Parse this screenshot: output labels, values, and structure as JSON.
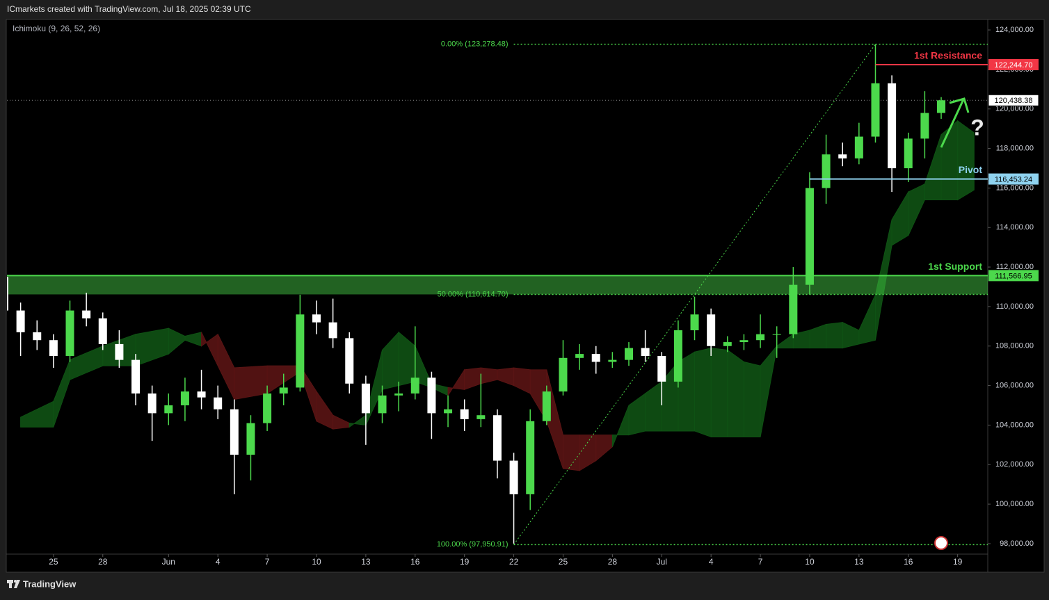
{
  "chart_data": {
    "type": "candlestick",
    "header": "ICmarkets created with TradingView.com, Jul 18, 2025 02:39 UTC",
    "indicator": "Ichimoku (9, 26, 52, 26)",
    "footer": "TradingView",
    "up_color": "#4cd94c",
    "down_color": "#ffffff",
    "x": [
      0,
      1,
      2,
      3,
      4,
      5,
      6,
      7,
      8,
      9,
      10,
      11,
      12,
      13,
      14,
      15,
      16,
      17,
      18,
      19,
      20,
      21,
      22,
      23,
      24,
      25,
      26,
      27,
      28,
      29,
      30,
      31,
      32,
      33,
      34,
      35,
      36,
      37,
      38,
      39,
      40,
      41,
      42,
      43,
      44,
      45,
      46,
      47,
      48,
      49,
      50,
      51,
      52,
      53,
      54,
      55,
      56,
      57
    ],
    "candles": [
      [
        111500,
        112000,
        109300,
        109800
      ],
      [
        109800,
        110200,
        107500,
        108700
      ],
      [
        108700,
        109300,
        107800,
        108300
      ],
      [
        108300,
        108600,
        106900,
        107500
      ],
      [
        107500,
        110300,
        107200,
        109800
      ],
      [
        109800,
        110700,
        109000,
        109400
      ],
      [
        109400,
        109700,
        107800,
        108100
      ],
      [
        108100,
        108800,
        106900,
        107300
      ],
      [
        107300,
        107600,
        105000,
        105600
      ],
      [
        105600,
        106000,
        103200,
        104600
      ],
      [
        104600,
        105600,
        104000,
        105000
      ],
      [
        105000,
        106400,
        104200,
        105700
      ],
      [
        105700,
        106800,
        104800,
        105400
      ],
      [
        105400,
        106000,
        104300,
        104800
      ],
      [
        104800,
        105300,
        100500,
        102500
      ],
      [
        102500,
        104500,
        101200,
        104100
      ],
      [
        104100,
        106000,
        103700,
        105600
      ],
      [
        105600,
        106600,
        105000,
        105900
      ],
      [
        105900,
        110600,
        105700,
        109600
      ],
      [
        109600,
        110300,
        108600,
        109200
      ],
      [
        109200,
        110400,
        107900,
        108400
      ],
      [
        108400,
        108700,
        105600,
        106100
      ],
      [
        106100,
        106500,
        103000,
        104600
      ],
      [
        104600,
        106000,
        104100,
        105500
      ],
      [
        105500,
        106200,
        104700,
        105600
      ],
      [
        105600,
        109000,
        105300,
        106400
      ],
      [
        106400,
        106700,
        103300,
        104600
      ],
      [
        104600,
        105500,
        103900,
        104800
      ],
      [
        104800,
        105300,
        103700,
        104300
      ],
      [
        104300,
        106600,
        103900,
        104500
      ],
      [
        104500,
        104800,
        101300,
        102200
      ],
      [
        102200,
        102600,
        98000,
        100500
      ],
      [
        100500,
        104800,
        99700,
        104200
      ],
      [
        104200,
        106000,
        104000,
        105700
      ],
      [
        105700,
        108300,
        105500,
        107400
      ],
      [
        107400,
        108100,
        106800,
        107600
      ],
      [
        107600,
        108000,
        106600,
        107200
      ],
      [
        107200,
        107700,
        106900,
        107300
      ],
      [
        107300,
        108200,
        107000,
        107900
      ],
      [
        107900,
        108800,
        107200,
        107500
      ],
      [
        107500,
        107700,
        105000,
        106200
      ],
      [
        106200,
        109300,
        105900,
        108800
      ],
      [
        108800,
        110500,
        108300,
        109600
      ],
      [
        109600,
        109900,
        107500,
        108000
      ],
      [
        108000,
        108500,
        107700,
        108200
      ],
      [
        108200,
        108600,
        107800,
        108300
      ],
      [
        108300,
        109600,
        107900,
        108600
      ],
      [
        108600,
        109000,
        107400,
        108600
      ],
      [
        108600,
        112000,
        108400,
        111100
      ],
      [
        111100,
        116800,
        110600,
        116000
      ],
      [
        116000,
        118700,
        115200,
        117700
      ],
      [
        117700,
        118300,
        117100,
        117500
      ],
      [
        117500,
        119300,
        117200,
        118600
      ],
      [
        118600,
        123278.48,
        118300,
        121300
      ],
      [
        121300,
        121700,
        115800,
        117000
      ],
      [
        117000,
        118800,
        116300,
        118500
      ],
      [
        118500,
        120900,
        117500,
        119800
      ],
      [
        119800,
        120600,
        119500,
        120438.38
      ]
    ],
    "cloud": {
      "up_color": "#0f5214",
      "down_color": "#5a1414",
      "x": [
        1,
        3,
        4,
        6,
        8,
        10,
        11,
        12,
        13,
        14,
        16,
        18,
        19,
        20,
        21,
        22,
        23,
        24,
        25,
        26,
        27,
        28,
        29,
        30,
        31,
        32,
        33,
        34,
        35,
        36,
        37,
        38,
        39,
        40,
        41,
        42,
        43,
        44,
        45,
        46,
        47,
        48,
        49,
        50,
        51,
        52,
        53,
        54,
        55,
        56,
        57,
        58,
        59
      ],
      "span_a": [
        104400,
        105200,
        107300,
        108000,
        108600,
        108900,
        108500,
        108700,
        107000,
        105300,
        105600,
        106700,
        104200,
        103800,
        103900,
        104500,
        107800,
        108700,
        108000,
        106100,
        105900,
        105800,
        106100,
        106300,
        106000,
        105600,
        104200,
        101800,
        101700,
        102200,
        102900,
        105000,
        105600,
        106200,
        107200,
        107700,
        107900,
        107800,
        107200,
        107000,
        108000,
        108600,
        108800,
        109100,
        109200,
        108800,
        110600,
        114400,
        115800,
        116200,
        118700,
        119400,
        118800
      ],
      "span_b": [
        103900,
        103900,
        106300,
        107000,
        107000,
        107600,
        108300,
        108000,
        108600,
        106900,
        107000,
        107000,
        105700,
        104500,
        104100,
        104000,
        105800,
        106000,
        106200,
        105900,
        105500,
        106800,
        106900,
        106800,
        106900,
        106800,
        106800,
        103500,
        103500,
        103500,
        103500,
        103500,
        103700,
        103700,
        103700,
        103700,
        103400,
        103400,
        103400,
        103400,
        107900,
        107900,
        107900,
        107900,
        107900,
        108100,
        108300,
        113100,
        113600,
        115400,
        115400,
        115400,
        115900
      ]
    },
    "fib": {
      "color": "#4cd94c",
      "x": [
        31,
        53
      ],
      "levels": [
        {
          "value": 123278.48,
          "label": "0.00% (123,278.48)"
        },
        {
          "value": 110614.7,
          "label": "50.00% (110,614.70)"
        },
        {
          "value": 97950.91,
          "label": "100.00% (97,950.91)"
        }
      ]
    },
    "levels": [
      {
        "name": "1st Resistance",
        "value": 122244.7,
        "label": "122,244.70",
        "color": "#f23645",
        "x": 53
      },
      {
        "name": "Pivot",
        "value": 116453.24,
        "label": "116,453.24",
        "color": "#8fd3f0",
        "x": 49
      },
      {
        "name": "1st Support",
        "value": 111566.95,
        "label": "111,566.95",
        "color": "#4cd94c",
        "x": 0
      }
    ],
    "current_price": {
      "value": 120438.38,
      "label": "120,438.38"
    },
    "annotation": "?",
    "xlim": [
      0.17,
      59.75
    ],
    "xticks": [
      {
        "value": 3,
        "label": "25"
      },
      {
        "value": 6,
        "label": "28"
      },
      {
        "value": 10,
        "label": "Jun"
      },
      {
        "value": 13,
        "label": "4"
      },
      {
        "value": 16,
        "label": "7"
      },
      {
        "value": 19,
        "label": "10"
      },
      {
        "value": 22,
        "label": "13"
      },
      {
        "value": 25,
        "label": "16"
      },
      {
        "value": 28,
        "label": "19"
      },
      {
        "value": 31,
        "label": "22"
      },
      {
        "value": 34,
        "label": "25"
      },
      {
        "value": 37,
        "label": "28"
      },
      {
        "value": 40,
        "label": "Jul"
      },
      {
        "value": 43,
        "label": "4"
      },
      {
        "value": 46,
        "label": "7"
      },
      {
        "value": 49,
        "label": "10"
      },
      {
        "value": 52,
        "label": "13"
      },
      {
        "value": 55,
        "label": "16"
      },
      {
        "value": 58,
        "label": "19"
      }
    ],
    "ylim": [
      96590,
      124530
    ],
    "yticks": [
      {
        "value": 98000,
        "label": "98,000.00"
      },
      {
        "value": 100000,
        "label": "100,000.00"
      },
      {
        "value": 102000,
        "label": "102,000.00"
      },
      {
        "value": 104000,
        "label": "104,000.00"
      },
      {
        "value": 106000,
        "label": "106,000.00"
      },
      {
        "value": 108000,
        "label": "108,000.00"
      },
      {
        "value": 110000,
        "label": "110,000.00"
      },
      {
        "value": 112000,
        "label": "112,000.00"
      },
      {
        "value": 114000,
        "label": "114,000.00"
      },
      {
        "value": 116000,
        "label": "116,000.00"
      },
      {
        "value": 118000,
        "label": "118,000.00"
      },
      {
        "value": 120000,
        "label": "120,000.00"
      },
      {
        "value": 122000,
        "label": "122,000.00"
      },
      {
        "value": 124000,
        "label": "124,000.00"
      }
    ]
  }
}
